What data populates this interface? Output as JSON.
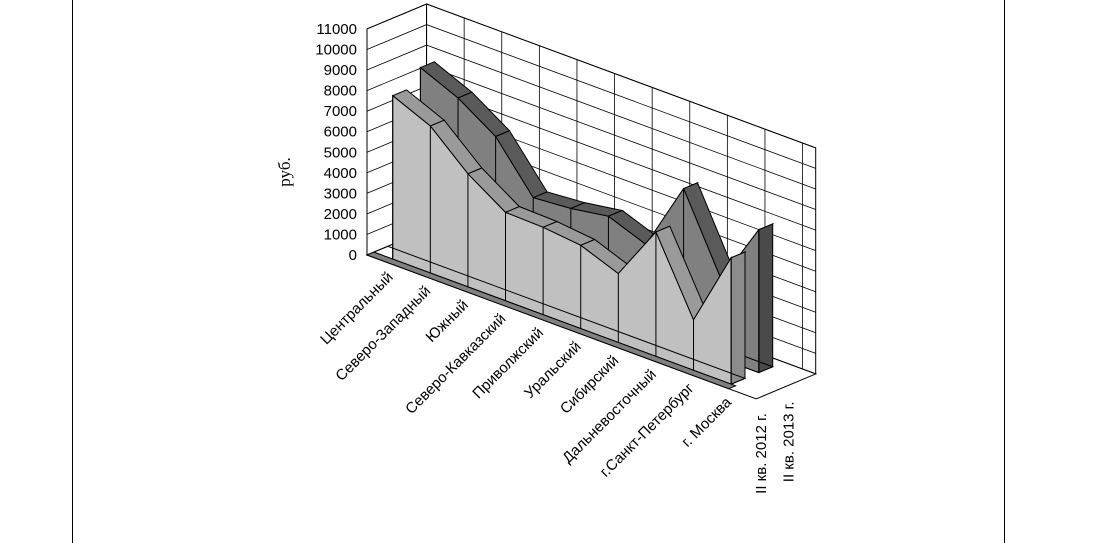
{
  "chart_data": {
    "type": "area",
    "view": "3d",
    "ylabel": "руб.",
    "ylim": [
      0,
      11000
    ],
    "yticks": [
      "0",
      "1000",
      "2000",
      "3000",
      "4000",
      "5000",
      "6000",
      "7000",
      "8000",
      "9000",
      "10000",
      "11000"
    ],
    "grid": true,
    "categories": [
      "Центральный",
      "Северо-Западный",
      "Южный",
      "Северо-Кавказский",
      "Приволжский",
      "Уральский",
      "Сибирский",
      "Дальневосточный",
      "г.Санкт-Петербург",
      "г. Москва"
    ],
    "series": [
      {
        "name": "II кв. 2012 г.",
        "values": [
          7950,
          7150,
          5500,
          4300,
          4250,
          4050,
          3350,
          6050,
          2450,
          6150
        ],
        "color": "#c0c0c0"
      },
      {
        "name": "II кв. 2013 г.",
        "values": [
          8750,
          7950,
          6750,
          4450,
          4600,
          4900,
          4200,
          7600,
          3850,
          6950
        ],
        "color": "#808080"
      }
    ]
  }
}
